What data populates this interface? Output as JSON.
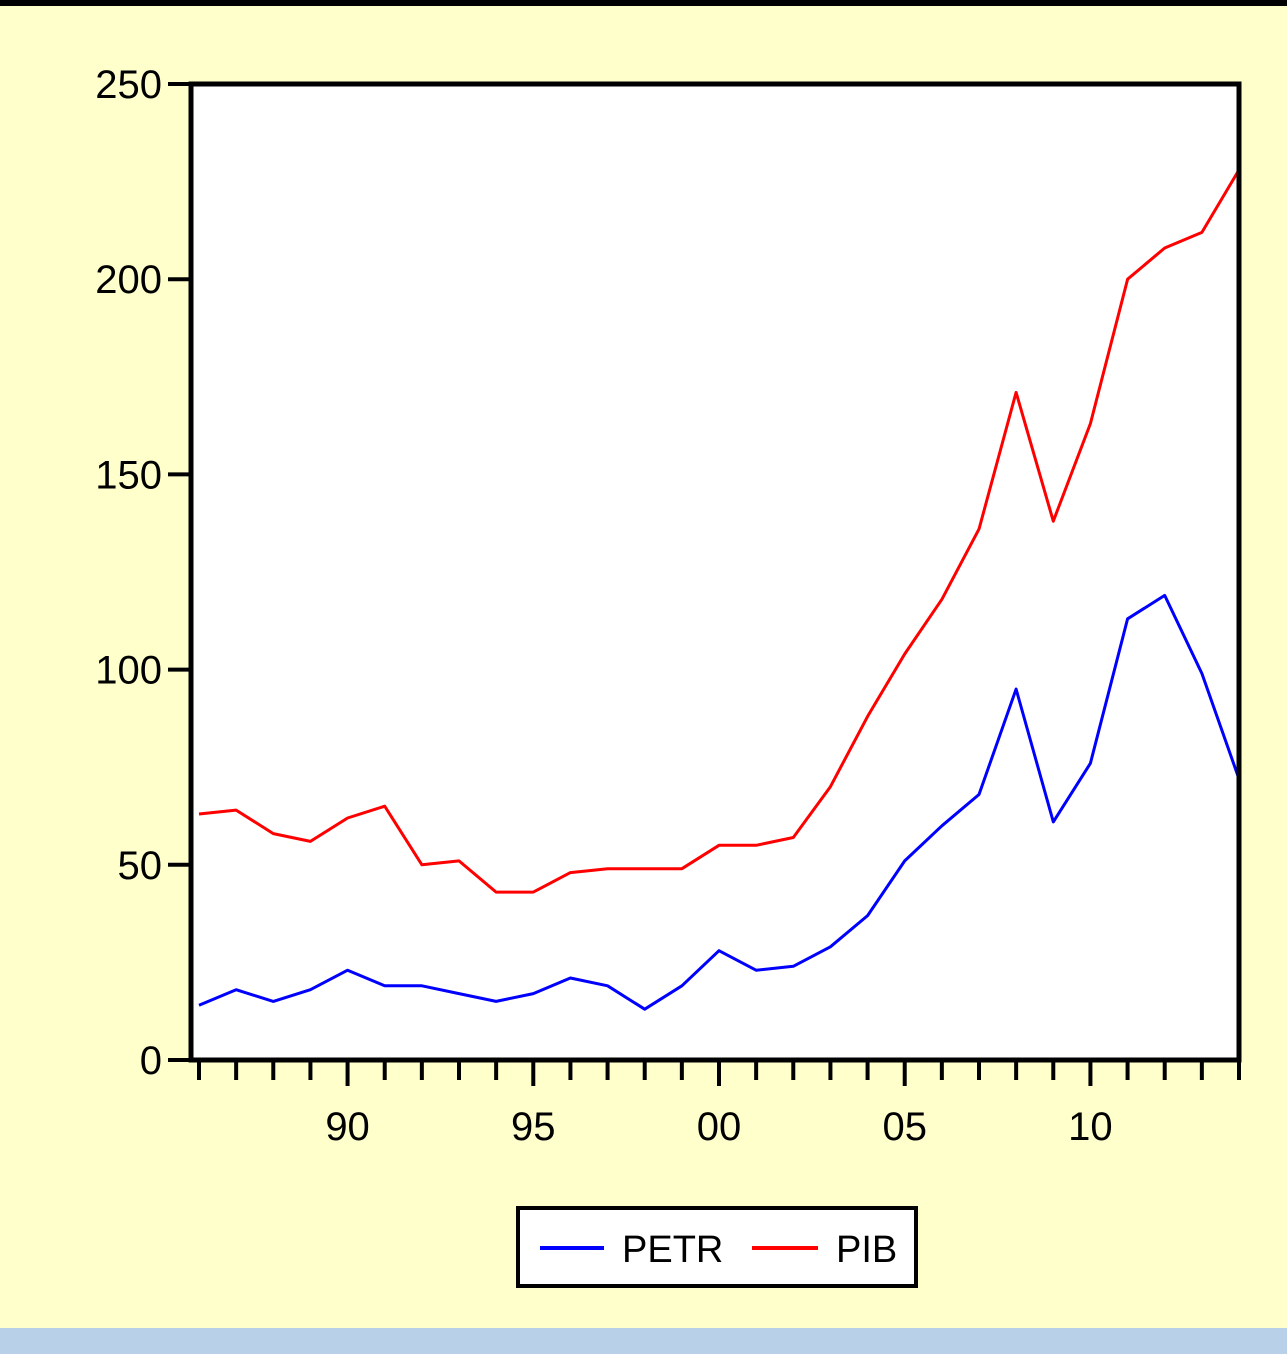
{
  "chart_data": {
    "type": "line",
    "title": "",
    "xlabel": "",
    "ylabel": "",
    "ylim": [
      0,
      250
    ],
    "xlim": [
      1986,
      2014
    ],
    "x_tick_labels": [
      {
        "year": 1990,
        "label": "90"
      },
      {
        "year": 1995,
        "label": "95"
      },
      {
        "year": 2000,
        "label": "00"
      },
      {
        "year": 2005,
        "label": "05"
      },
      {
        "year": 2010,
        "label": "10"
      }
    ],
    "y_ticks": [
      0,
      50,
      100,
      150,
      200,
      250
    ],
    "y_tick_labels": [
      "0",
      "50",
      "100",
      "150",
      "200",
      "250"
    ],
    "grid": false,
    "legend_position": "bottom",
    "x": [
      1986,
      1987,
      1988,
      1989,
      1990,
      1991,
      1992,
      1993,
      1994,
      1995,
      1996,
      1997,
      1998,
      1999,
      2000,
      2001,
      2002,
      2003,
      2004,
      2005,
      2006,
      2007,
      2008,
      2009,
      2010,
      2011,
      2012,
      2013,
      2014
    ],
    "series": [
      {
        "name": "PETR",
        "color": "#0000ff",
        "values": [
          14,
          18,
          15,
          18,
          23,
          19,
          19,
          17,
          15,
          17,
          21,
          19,
          13,
          19,
          28,
          23,
          24,
          29,
          37,
          51,
          60,
          68,
          95,
          61,
          76,
          113,
          119,
          99,
          72
        ]
      },
      {
        "name": "PIB",
        "color": "#ff0000",
        "values": [
          63,
          64,
          58,
          56,
          62,
          65,
          50,
          51,
          43,
          43,
          48,
          49,
          49,
          49,
          55,
          55,
          57,
          70,
          88,
          104,
          118,
          136,
          171,
          138,
          163,
          200,
          208,
          212,
          228
        ]
      }
    ]
  }
}
